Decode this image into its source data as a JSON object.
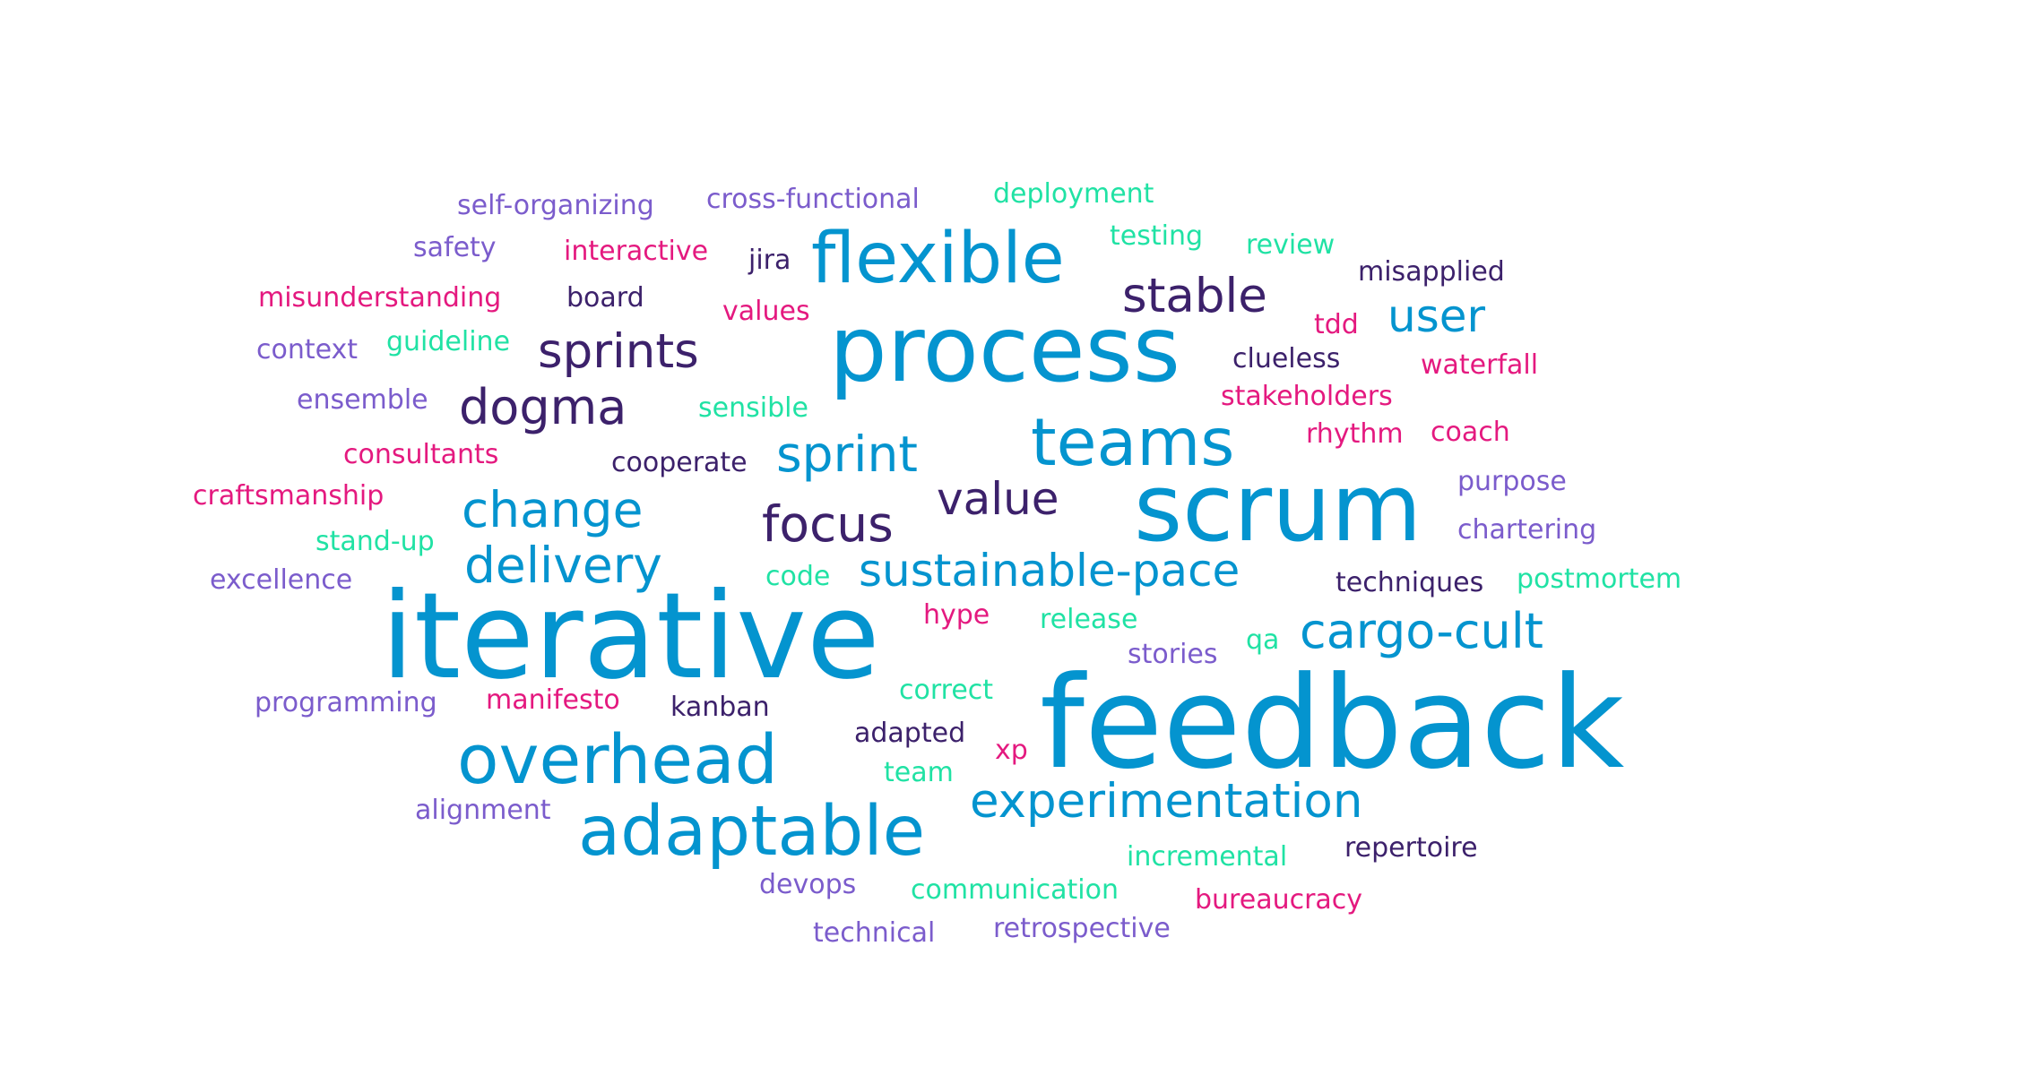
{
  "words": [
    {
      "text": "feedback",
      "color": "#0494cf"
    },
    {
      "text": "iterative",
      "color": "#0494cf"
    },
    {
      "text": "process",
      "color": "#0494cf"
    },
    {
      "text": "scrum",
      "color": "#0494cf"
    },
    {
      "text": "adaptable",
      "color": "#0494cf"
    },
    {
      "text": "overhead",
      "color": "#0494cf"
    },
    {
      "text": "flexible",
      "color": "#0494cf"
    },
    {
      "text": "teams",
      "color": "#0494cf"
    },
    {
      "text": "experimentation",
      "color": "#0494cf"
    },
    {
      "text": "sustainable-pace",
      "color": "#0494cf"
    },
    {
      "text": "cargo-cult",
      "color": "#0494cf"
    },
    {
      "text": "change",
      "color": "#0494cf"
    },
    {
      "text": "delivery",
      "color": "#0494cf"
    },
    {
      "text": "sprint",
      "color": "#0494cf"
    },
    {
      "text": "user",
      "color": "#0494cf"
    },
    {
      "text": "sprints",
      "color": "#3c216b"
    },
    {
      "text": "dogma",
      "color": "#3c216b"
    },
    {
      "text": "stable",
      "color": "#3c216b"
    },
    {
      "text": "focus",
      "color": "#3c216b"
    },
    {
      "text": "value",
      "color": "#3c216b"
    },
    {
      "text": "jira",
      "color": "#3c216b"
    },
    {
      "text": "board",
      "color": "#3c216b"
    },
    {
      "text": "misapplied",
      "color": "#3c216b"
    },
    {
      "text": "clueless",
      "color": "#3c216b"
    },
    {
      "text": "cooperate",
      "color": "#3c216b"
    },
    {
      "text": "techniques",
      "color": "#3c216b"
    },
    {
      "text": "kanban",
      "color": "#3c216b"
    },
    {
      "text": "adapted",
      "color": "#3c216b"
    },
    {
      "text": "repertoire",
      "color": "#3c216b"
    },
    {
      "text": "self-organizing",
      "color": "#7b5ccc"
    },
    {
      "text": "cross-functional",
      "color": "#7b5ccc"
    },
    {
      "text": "safety",
      "color": "#7b5ccc"
    },
    {
      "text": "context",
      "color": "#7b5ccc"
    },
    {
      "text": "ensemble",
      "color": "#7b5ccc"
    },
    {
      "text": "purpose",
      "color": "#7b5ccc"
    },
    {
      "text": "chartering",
      "color": "#7b5ccc"
    },
    {
      "text": "excellence",
      "color": "#7b5ccc"
    },
    {
      "text": "stories",
      "color": "#7b5ccc"
    },
    {
      "text": "programming",
      "color": "#7b5ccc"
    },
    {
      "text": "alignment",
      "color": "#7b5ccc"
    },
    {
      "text": "devops",
      "color": "#7b5ccc"
    },
    {
      "text": "technical",
      "color": "#7b5ccc"
    },
    {
      "text": "retrospective",
      "color": "#7b5ccc"
    },
    {
      "text": "interactive",
      "color": "#e4197f"
    },
    {
      "text": "misunderstanding",
      "color": "#e4197f"
    },
    {
      "text": "values",
      "color": "#e4197f"
    },
    {
      "text": "tdd",
      "color": "#e4197f"
    },
    {
      "text": "waterfall",
      "color": "#e4197f"
    },
    {
      "text": "stakeholders",
      "color": "#e4197f"
    },
    {
      "text": "rhythm",
      "color": "#e4197f"
    },
    {
      "text": "coach",
      "color": "#e4197f"
    },
    {
      "text": "consultants",
      "color": "#e4197f"
    },
    {
      "text": "craftsmanship",
      "color": "#e4197f"
    },
    {
      "text": "hype",
      "color": "#e4197f"
    },
    {
      "text": "manifesto",
      "color": "#e4197f"
    },
    {
      "text": "xp",
      "color": "#e4197f"
    },
    {
      "text": "bureaucracy",
      "color": "#e4197f"
    },
    {
      "text": "deployment",
      "color": "#20e2a4"
    },
    {
      "text": "testing",
      "color": "#20e2a4"
    },
    {
      "text": "review",
      "color": "#20e2a4"
    },
    {
      "text": "guideline",
      "color": "#20e2a4"
    },
    {
      "text": "sensible",
      "color": "#20e2a4"
    },
    {
      "text": "stand-up",
      "color": "#20e2a4"
    },
    {
      "text": "code",
      "color": "#20e2a4"
    },
    {
      "text": "postmortem",
      "color": "#20e2a4"
    },
    {
      "text": "release",
      "color": "#20e2a4"
    },
    {
      "text": "qa",
      "color": "#20e2a4"
    },
    {
      "text": "correct",
      "color": "#20e2a4"
    },
    {
      "text": "team",
      "color": "#20e2a4"
    },
    {
      "text": "incremental",
      "color": "#20e2a4"
    },
    {
      "text": "communication",
      "color": "#20e2a4"
    }
  ]
}
